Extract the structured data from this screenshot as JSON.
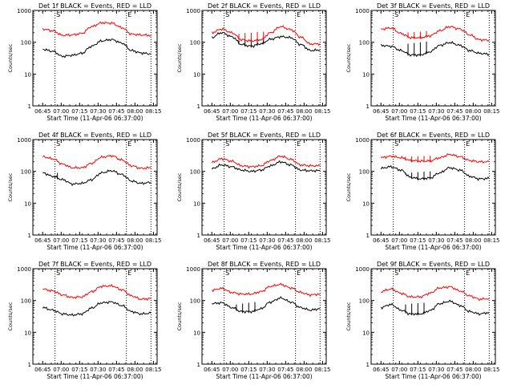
{
  "chart_data": [
    {
      "type": "line",
      "title": "Det 1f BLACK = Events, RED = LLD",
      "xlabel": "Start Time (11-Apr-06 06:37:00)",
      "ylabel": "Counts/sec",
      "markers": [
        {
          "x": "06:55",
          "label": "S"
        },
        {
          "x": "07:53",
          "label": "E"
        },
        {
          "x": "08:13",
          "label": ""
        }
      ],
      "series": [
        {
          "name": "BLACK = Events",
          "color": "#000000",
          "values": [
            60,
            52,
            36,
            39,
            45,
            75,
            110,
            122,
            95,
            55,
            46,
            43
          ],
          "spikes": []
        },
        {
          "name": "RED = LLD",
          "color": "#ff0000",
          "values": [
            260,
            230,
            165,
            170,
            190,
            310,
            410,
            400,
            290,
            180,
            170,
            165
          ],
          "spikes": []
        }
      ]
    },
    {
      "type": "line",
      "title": "Det 2f BLACK = Events, RED = LLD",
      "xlabel": "Start Time (11-Apr-06 06:37:00)",
      "ylabel": "Counts/sec",
      "markers": [
        {
          "x": "06:55",
          "label": "S"
        },
        {
          "x": "07:53",
          "label": "E"
        },
        {
          "x": "08:13",
          "label": ""
        }
      ],
      "series": [
        {
          "name": "BLACK = Events",
          "color": "#000000",
          "values": [
            140,
            200,
            150,
            85,
            75,
            90,
            125,
            150,
            140,
            85,
            55,
            57
          ],
          "spikes": [
            {
              "x": "07:07",
              "top": 115
            },
            {
              "x": "07:12",
              "top": 120
            },
            {
              "x": "07:17",
              "top": 125
            },
            {
              "x": "07:22",
              "top": 128
            },
            {
              "x": "07:27",
              "top": 135
            }
          ]
        },
        {
          "name": "RED = LLD",
          "color": "#ff0000",
          "values": [
            200,
            260,
            200,
            120,
            110,
            120,
            200,
            310,
            250,
            145,
            88,
            90
          ],
          "spikes": [
            {
              "x": "07:07",
              "top": 185
            },
            {
              "x": "07:12",
              "top": 195
            },
            {
              "x": "07:17",
              "top": 200
            },
            {
              "x": "07:22",
              "top": 210
            },
            {
              "x": "07:27",
              "top": 215
            }
          ]
        }
      ]
    },
    {
      "type": "line",
      "title": "Det 3f BLACK = Events, RED = LLD",
      "xlabel": "Start Time (11-Apr-06 06:37:00)",
      "ylabel": "Counts/sec",
      "markers": [
        {
          "x": "06:55",
          "label": "S"
        },
        {
          "x": "07:53",
          "label": "E"
        },
        {
          "x": "08:13",
          "label": ""
        }
      ],
      "series": [
        {
          "name": "BLACK = Events",
          "color": "#000000",
          "values": [
            80,
            75,
            55,
            40,
            40,
            50,
            80,
            98,
            80,
            55,
            45,
            42
          ],
          "spikes": [
            {
              "x": "07:07",
              "top": 90
            },
            {
              "x": "07:12",
              "top": 95
            },
            {
              "x": "07:17",
              "top": 100
            },
            {
              "x": "07:22",
              "top": 105
            }
          ]
        },
        {
          "name": "RED = LLD",
          "color": "#ff0000",
          "values": [
            260,
            280,
            190,
            140,
            140,
            160,
            230,
            310,
            260,
            170,
            120,
            115
          ],
          "spikes": [
            {
              "x": "07:07",
              "top": 205
            },
            {
              "x": "07:12",
              "top": 210
            },
            {
              "x": "07:17",
              "top": 215
            },
            {
              "x": "07:22",
              "top": 225
            }
          ]
        }
      ]
    },
    {
      "type": "line",
      "title": "Det 4f BLACK = Events, RED = LLD",
      "xlabel": "Start Time (11-Apr-06 06:37:00)",
      "ylabel": "Counts/sec",
      "markers": [
        {
          "x": "06:55",
          "label": "S"
        },
        {
          "x": "07:53",
          "label": "E"
        },
        {
          "x": "08:13",
          "label": ""
        }
      ],
      "series": [
        {
          "name": "BLACK = Events",
          "color": "#000000",
          "values": [
            90,
            70,
            55,
            40,
            42,
            55,
            90,
            105,
            80,
            50,
            42,
            45
          ],
          "spikes": [
            {
              "x": "06:57",
              "top": 90
            }
          ]
        },
        {
          "name": "RED = LLD",
          "color": "#ff0000",
          "values": [
            290,
            250,
            170,
            130,
            130,
            180,
            280,
            310,
            230,
            150,
            125,
            130
          ],
          "spikes": []
        }
      ]
    },
    {
      "type": "line",
      "title": "Det 5f BLACK = Events, RED = LLD",
      "xlabel": "Start Time (11-Apr-06 06:37:00)",
      "ylabel": "Counts/sec",
      "markers": [
        {
          "x": "06:55",
          "label": "S"
        },
        {
          "x": "07:53",
          "label": "E"
        },
        {
          "x": "08:13",
          "label": ""
        }
      ],
      "series": [
        {
          "name": "BLACK = Events",
          "color": "#000000",
          "values": [
            120,
            160,
            140,
            110,
            100,
            110,
            150,
            200,
            160,
            110,
            105,
            105
          ],
          "spikes": []
        },
        {
          "name": "RED = LLD",
          "color": "#ff0000",
          "values": [
            190,
            250,
            210,
            150,
            140,
            150,
            220,
            300,
            240,
            160,
            150,
            150
          ],
          "spikes": []
        }
      ]
    },
    {
      "type": "line",
      "title": "Det 6f BLACK = Events, RED = LLD",
      "xlabel": "Start Time (11-Apr-06 06:37:00)",
      "ylabel": "Counts/sec",
      "markers": [
        {
          "x": "06:55",
          "label": "S"
        },
        {
          "x": "07:53",
          "label": "E"
        },
        {
          "x": "08:13",
          "label": ""
        }
      ],
      "series": [
        {
          "name": "BLACK = Events",
          "color": "#000000",
          "values": [
            125,
            140,
            110,
            65,
            58,
            62,
            90,
            130,
            110,
            70,
            58,
            60
          ],
          "spikes": [
            {
              "x": "07:05",
              "top": 90
            },
            {
              "x": "07:10",
              "top": 92
            },
            {
              "x": "07:15",
              "top": 95
            },
            {
              "x": "07:20",
              "top": 98
            },
            {
              "x": "07:25",
              "top": 100
            }
          ]
        },
        {
          "name": "RED = LLD",
          "color": "#ff0000",
          "values": [
            270,
            300,
            270,
            220,
            210,
            215,
            270,
            340,
            290,
            220,
            200,
            200
          ],
          "spikes": [
            {
              "x": "07:05",
              "top": 290
            },
            {
              "x": "07:10",
              "top": 295
            },
            {
              "x": "07:15",
              "top": 300
            },
            {
              "x": "07:20",
              "top": 305
            },
            {
              "x": "07:25",
              "top": 310
            }
          ]
        }
      ]
    },
    {
      "type": "line",
      "title": "Det 7f BLACK = Events, RED = LLD",
      "xlabel": "Start Time (11-Apr-06 06:37:00)",
      "ylabel": "Counts/sec",
      "markers": [
        {
          "x": "06:55",
          "label": "S"
        },
        {
          "x": "07:53",
          "label": "E"
        },
        {
          "x": "08:13",
          "label": ""
        }
      ],
      "series": [
        {
          "name": "BLACK = Events",
          "color": "#000000",
          "values": [
            60,
            50,
            38,
            35,
            38,
            58,
            85,
            90,
            70,
            45,
            38,
            40
          ],
          "spikes": []
        },
        {
          "name": "RED = LLD",
          "color": "#ff0000",
          "values": [
            230,
            200,
            150,
            125,
            130,
            190,
            280,
            290,
            220,
            140,
            110,
            115
          ],
          "spikes": []
        }
      ]
    },
    {
      "type": "line",
      "title": "Det 8f BLACK = Events, RED = LLD",
      "xlabel": "Start Time (11-Apr-06 06:37:00)",
      "ylabel": "Counts/sec",
      "markers": [
        {
          "x": "06:55",
          "label": "S"
        },
        {
          "x": "07:53",
          "label": "E"
        },
        {
          "x": "08:13",
          "label": ""
        }
      ],
      "series": [
        {
          "name": "BLACK = Events",
          "color": "#000000",
          "values": [
            80,
            85,
            60,
            45,
            45,
            55,
            90,
            120,
            90,
            60,
            50,
            55
          ],
          "spikes": [
            {
              "x": "07:05",
              "top": 75
            },
            {
              "x": "07:10",
              "top": 80
            },
            {
              "x": "07:15",
              "top": 85
            },
            {
              "x": "07:20",
              "top": 90
            }
          ]
        },
        {
          "name": "RED = LLD",
          "color": "#ff0000",
          "values": [
            210,
            240,
            180,
            160,
            160,
            190,
            280,
            320,
            250,
            180,
            150,
            160
          ],
          "spikes": []
        }
      ]
    },
    {
      "type": "line",
      "title": "Det 9f BLACK = Events, RED = LLD",
      "xlabel": "Start Time (11-Apr-06 06:37:00)",
      "ylabel": "Counts/sec",
      "markers": [
        {
          "x": "06:55",
          "label": "S"
        },
        {
          "x": "07:53",
          "label": "E"
        },
        {
          "x": "08:13",
          "label": ""
        }
      ],
      "series": [
        {
          "name": "BLACK = Events",
          "color": "#000000",
          "values": [
            60,
            75,
            50,
            38,
            38,
            48,
            80,
            95,
            70,
            45,
            38,
            42
          ],
          "spikes": [
            {
              "x": "07:05",
              "top": 75
            },
            {
              "x": "07:10",
              "top": 80
            },
            {
              "x": "07:15",
              "top": 82
            },
            {
              "x": "07:20",
              "top": 85
            }
          ]
        },
        {
          "name": "RED = LLD",
          "color": "#ff0000",
          "values": [
            190,
            230,
            170,
            130,
            130,
            170,
            250,
            270,
            200,
            140,
            110,
            115
          ],
          "spikes": []
        }
      ]
    }
  ],
  "shared_axes": {
    "x_labels": [
      "06:45",
      "07:00",
      "07:15",
      "07:30",
      "07:45",
      "08:00",
      "08:15"
    ],
    "x_range": [
      "06:37",
      "08:18"
    ],
    "y_scale": "log",
    "y_range": [
      1,
      1000
    ],
    "y_ticks": [
      {
        "v": 1,
        "label": "1"
      },
      {
        "v": 10,
        "label": "10"
      },
      {
        "v": 100,
        "label": "100"
      },
      {
        "v": 1000,
        "label": "1000"
      }
    ],
    "grid": false
  }
}
